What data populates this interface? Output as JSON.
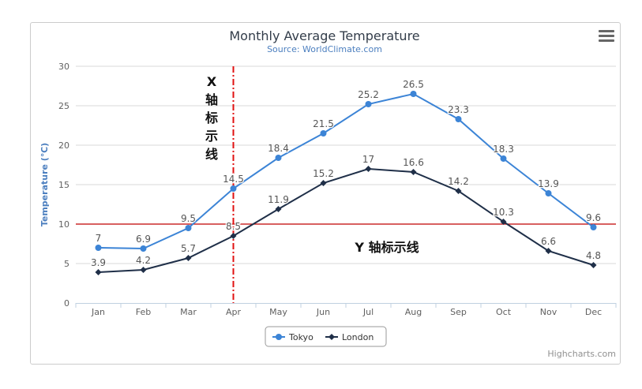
{
  "chart_data": {
    "type": "line",
    "title": "Monthly Average Temperature",
    "subtitle": "Source: WorldClimate.com",
    "ylabel": "Temperature (℃)",
    "ylim": [
      0,
      30
    ],
    "yticks": [
      0,
      5,
      10,
      15,
      20,
      25,
      30
    ],
    "categories": [
      "Jan",
      "Feb",
      "Mar",
      "Apr",
      "May",
      "Jun",
      "Jul",
      "Aug",
      "Sep",
      "Oct",
      "Nov",
      "Dec"
    ],
    "series": [
      {
        "name": "Tokyo",
        "color": "#3c84d6",
        "marker": "circle",
        "values": [
          7,
          6.9,
          9.5,
          14.5,
          18.4,
          21.5,
          25.2,
          26.5,
          23.3,
          18.3,
          13.9,
          9.6
        ]
      },
      {
        "name": "London",
        "color": "#1f2f48",
        "marker": "diamond",
        "values": [
          3.9,
          4.2,
          5.7,
          8.5,
          11.9,
          15.2,
          17,
          16.6,
          14.2,
          10.3,
          6.6,
          4.8
        ]
      }
    ],
    "x_plotline": {
      "category": "Apr",
      "color": "#e01010",
      "label": "X 轴标示线"
    },
    "y_plotline": {
      "value": 10,
      "color": "#c00000",
      "label": "Y 轴标示线"
    },
    "legend_position": "bottom-center",
    "grid": true,
    "credits": "Highcharts.com"
  },
  "menu": {
    "icon": "hamburger-menu-icon"
  }
}
